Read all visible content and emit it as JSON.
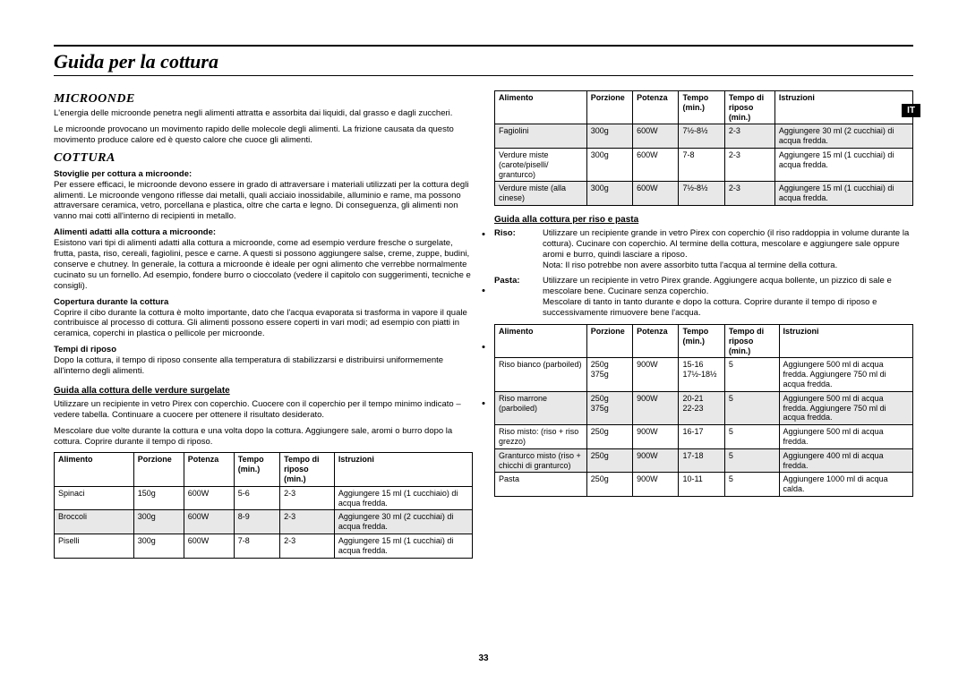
{
  "page": {
    "title": "Guida per la cottura",
    "lang_tab": "IT",
    "number": "33"
  },
  "left": {
    "h1": "MICROONDE",
    "p1": "L'energia delle microonde penetra negli alimenti attratta e assorbita dai liquidi, dal grasso e dagli zuccheri.",
    "p2": "Le microonde provocano un movimento rapido delle molecole degli alimenti. La frizione causata da questo movimento produce calore ed è questo calore che cuoce gli alimenti.",
    "h2": "COTTURA",
    "s1": "Stoviglie per cottura a microonde:",
    "s1p": "Per essere efficaci, le microonde devono essere in grado di attraversare i materiali utilizzati per la cottura degli alimenti. Le microonde vengono riflesse dai metalli, quali acciaio inossidabile, alluminio e rame, ma possono attraversare ceramica, vetro, porcellana e plastica, oltre che carta e legno. Di conseguenza, gli alimenti non vanno mai cotti all'interno di recipienti in metallo.",
    "s2": "Alimenti adatti alla cottura a microonde:",
    "s2p": "Esistono vari tipi di alimenti adatti alla cottura a microonde, come ad esempio verdure fresche o surgelate, frutta, pasta, riso, cereali, fagiolini, pesce e carne. A questi si possono aggiungere salse, creme, zuppe, budini, conserve e chutney. In generale, la cottura a microonde è ideale per ogni alimento che verrebbe normalmente cucinato su un fornello. Ad esempio, fondere burro o cioccolato (vedere il capitolo con suggerimenti, tecniche e consigli).",
    "s3": "Copertura durante la cottura",
    "s3p": "Coprire il cibo durante la cottura è molto importante, dato che l'acqua evaporata si trasforma in vapore il quale contribuisce al processo di cottura. Gli alimenti possono essere coperti in vari modi; ad esempio con piatti in ceramica, coperchi in plastica o pellicole per microonde.",
    "s4": "Tempi di riposo",
    "s4p": "Dopo la cottura, il tempo di riposo consente alla temperatura di stabilizzarsi e distribuirsi uniformemente all'interno degli alimenti.",
    "g1": "Guida alla cottura delle verdure surgelate",
    "g1p1": "Utilizzare un recipiente in vetro Pirex con coperchio. Cuocere con il coperchio per il tempo minimo indicato – vedere tabella. Continuare a cuocere per ottenere il risultato desiderato.",
    "g1p2": "Mescolare due volte durante la cottura e una volta dopo la cottura. Aggiungere sale, aromi o burro dopo la cottura. Coprire durante il tempo di riposo."
  },
  "table1": {
    "headers": [
      "Alimento",
      "Porzione",
      "Potenza",
      "Tempo (min.)",
      "Tempo di riposo (min.)",
      "Istruzioni"
    ],
    "rows": [
      {
        "c": [
          "Spinaci",
          "150g",
          "600W",
          "5-6",
          "2-3",
          "Aggiungere 15 ml (1 cucchiaio) di acqua fredda."
        ],
        "shade": false
      },
      {
        "c": [
          "Broccoli",
          "300g",
          "600W",
          "8-9",
          "2-3",
          "Aggiungere 30 ml (2 cucchiai) di acqua fredda."
        ],
        "shade": true
      },
      {
        "c": [
          "Piselli",
          "300g",
          "600W",
          "7-8",
          "2-3",
          "Aggiungere 15 ml (1 cucchiai) di acqua fredda."
        ],
        "shade": false
      }
    ]
  },
  "table2": {
    "headers": [
      "Alimento",
      "Porzione",
      "Potenza",
      "Tempo (min.)",
      "Tempo di riposo (min.)",
      "Istruzioni"
    ],
    "rows": [
      {
        "c": [
          "Fagiolini",
          "300g",
          "600W",
          "7½-8½",
          "2-3",
          "Aggiungere 30 ml (2 cucchiai) di acqua fredda."
        ],
        "shade": true
      },
      {
        "c": [
          "Verdure miste (carote/piselli/ granturco)",
          "300g",
          "600W",
          "7-8",
          "2-3",
          "Aggiungere 15 ml (1 cucchiai) di acqua fredda."
        ],
        "shade": false
      },
      {
        "c": [
          "Verdure miste (alla cinese)",
          "300g",
          "600W",
          "7½-8½",
          "2-3",
          "Aggiungere 15 ml (1 cucchiai) di acqua fredda."
        ],
        "shade": true
      }
    ]
  },
  "right": {
    "g2": "Guida alla cottura per riso e pasta",
    "riso_label": "Riso:",
    "riso_body": "Utilizzare un recipiente grande in vetro Pirex con coperchio (il riso raddoppia in volume durante la cottura). Cucinare con coperchio. Al termine della cottura, mescolare e aggiungere sale oppure aromi e burro, quindi lasciare a riposo.\nNota: Il riso potrebbe non avere assorbito tutta l'acqua al termine della cottura.",
    "pasta_label": "Pasta:",
    "pasta_body": "Utilizzare un recipiente in vetro Pirex grande. Aggiungere acqua bollente, un pizzico di sale e mescolare bene. Cucinare senza coperchio.\nMescolare di tanto in tanto durante e dopo la cottura. Coprire durante il tempo di riposo e successivamente rimuovere bene l'acqua."
  },
  "table3": {
    "headers": [
      "Alimento",
      "Porzione",
      "Potenza",
      "Tempo (min.)",
      "Tempo di riposo (min.)",
      "Istruzioni"
    ],
    "rows": [
      {
        "c": [
          "Riso bianco (parboiled)",
          "250g\n375g",
          "900W",
          "15-16\n17½-18½",
          "5",
          "Aggiungere 500 ml di acqua fredda. Aggiungere 750 ml di acqua fredda."
        ],
        "shade": false
      },
      {
        "c": [
          "Riso marrone (parboiled)",
          "250g\n375g",
          "900W",
          "20-21\n22-23",
          "5",
          "Aggiungere 500 ml di acqua fredda. Aggiungere 750 ml di acqua fredda."
        ],
        "shade": true
      },
      {
        "c": [
          "Riso misto: (riso + riso grezzo)",
          "250g",
          "900W",
          "16-17",
          "5",
          "Aggiungere 500 ml di acqua fredda."
        ],
        "shade": false
      },
      {
        "c": [
          "Granturco misto (riso + chicchi di granturco)",
          "250g",
          "900W",
          "17-18",
          "5",
          "Aggiungere 400 ml di acqua fredda."
        ],
        "shade": true
      },
      {
        "c": [
          "Pasta",
          "250g",
          "900W",
          "10-11",
          "5",
          "Aggiungere 1000 ml di acqua calda."
        ],
        "shade": false
      }
    ]
  },
  "col_widths": {
    "t1": [
      "19%",
      "12%",
      "12%",
      "11%",
      "13%",
      "33%"
    ],
    "t2": [
      "22%",
      "11%",
      "11%",
      "11%",
      "12%",
      "33%"
    ],
    "t3": [
      "22%",
      "11%",
      "11%",
      "11%",
      "13%",
      "32%"
    ]
  }
}
